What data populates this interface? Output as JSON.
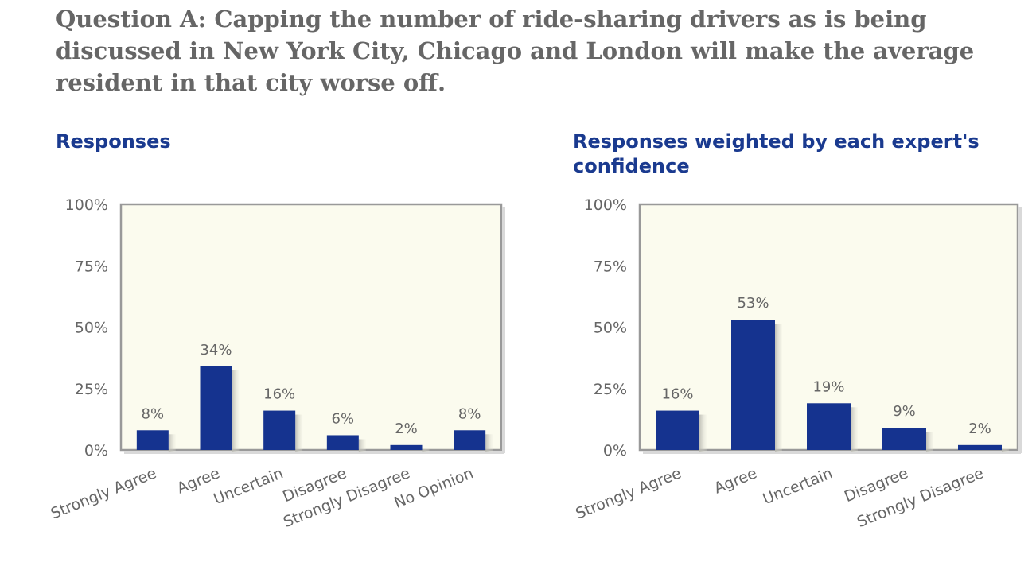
{
  "question": {
    "text": "Question A: Capping the number of ride-sharing drivers as is being discussed in New York City, Chicago and London will make the average resident in that city worse off."
  },
  "colors": {
    "bar": "#15338f",
    "plot_bg": "#fbfbee",
    "frame": "#999999",
    "title": "#1a3a8f",
    "text": "#666666"
  },
  "chart_data": [
    {
      "type": "bar",
      "title": "Responses",
      "categories": [
        "Strongly Agree",
        "Agree",
        "Uncertain",
        "Disagree",
        "Strongly Disagree",
        "No Opinion"
      ],
      "values": [
        8,
        34,
        16,
        6,
        2,
        8
      ],
      "value_labels": [
        "8%",
        "34%",
        "16%",
        "6%",
        "2%",
        "8%"
      ],
      "yticks": [
        "0%",
        "25%",
        "50%",
        "75%",
        "100%"
      ],
      "ylim": [
        0,
        100
      ],
      "xlabel": "",
      "ylabel": ""
    },
    {
      "type": "bar",
      "title": "Responses weighted by each expert's confidence",
      "categories": [
        "Strongly Agree",
        "Agree",
        "Uncertain",
        "Disagree",
        "Strongly Disagree"
      ],
      "values": [
        16,
        53,
        19,
        9,
        2
      ],
      "value_labels": [
        "16%",
        "53%",
        "19%",
        "9%",
        "2%"
      ],
      "yticks": [
        "0%",
        "25%",
        "50%",
        "75%",
        "100%"
      ],
      "ylim": [
        0,
        100
      ],
      "xlabel": "",
      "ylabel": ""
    }
  ]
}
